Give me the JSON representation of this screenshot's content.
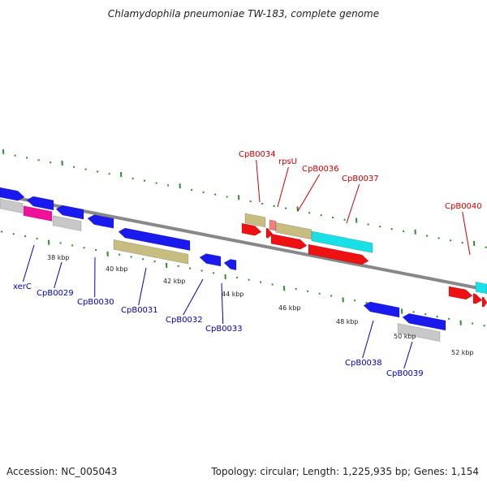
{
  "title": "Chlamydophila pneumoniae TW-183, complete genome",
  "footer": {
    "accession": "Accession: NC_005043",
    "summary": "Topology: circular; Length: 1,225,935 bp; Genes: 1,154"
  },
  "colors": {
    "background": "#ffffff",
    "backbone": "#888888",
    "tick": "#2e8b2e",
    "forward_label": "#cc0000",
    "reverse_label": "#0000bb",
    "ruler_label": "#222222",
    "gene_blue": "#1a1aee",
    "gene_red": "#ee1111",
    "gene_khaki": "#c8bd80",
    "gene_cyan": "#19e0e6",
    "gene_magenta": "#ee1199",
    "gene_gray": "#c8c8c8",
    "gene_pink": "#f08080"
  },
  "ruler_labels": [
    "38 kbp",
    "40 kbp",
    "42 kbp",
    "44 kbp",
    "46 kbp",
    "48 kbp",
    "50 kbp",
    "52 kbp"
  ],
  "forward_gene_labels": [
    "CpB0034",
    "rpsU",
    "CpB0036",
    "CpB0037",
    "CpB0040"
  ],
  "reverse_gene_labels": [
    "xerC",
    "CpB0029",
    "CpB0030",
    "CpB0031",
    "CpB0032",
    "CpB0033",
    "CpB0038",
    "CpB0039"
  ]
}
